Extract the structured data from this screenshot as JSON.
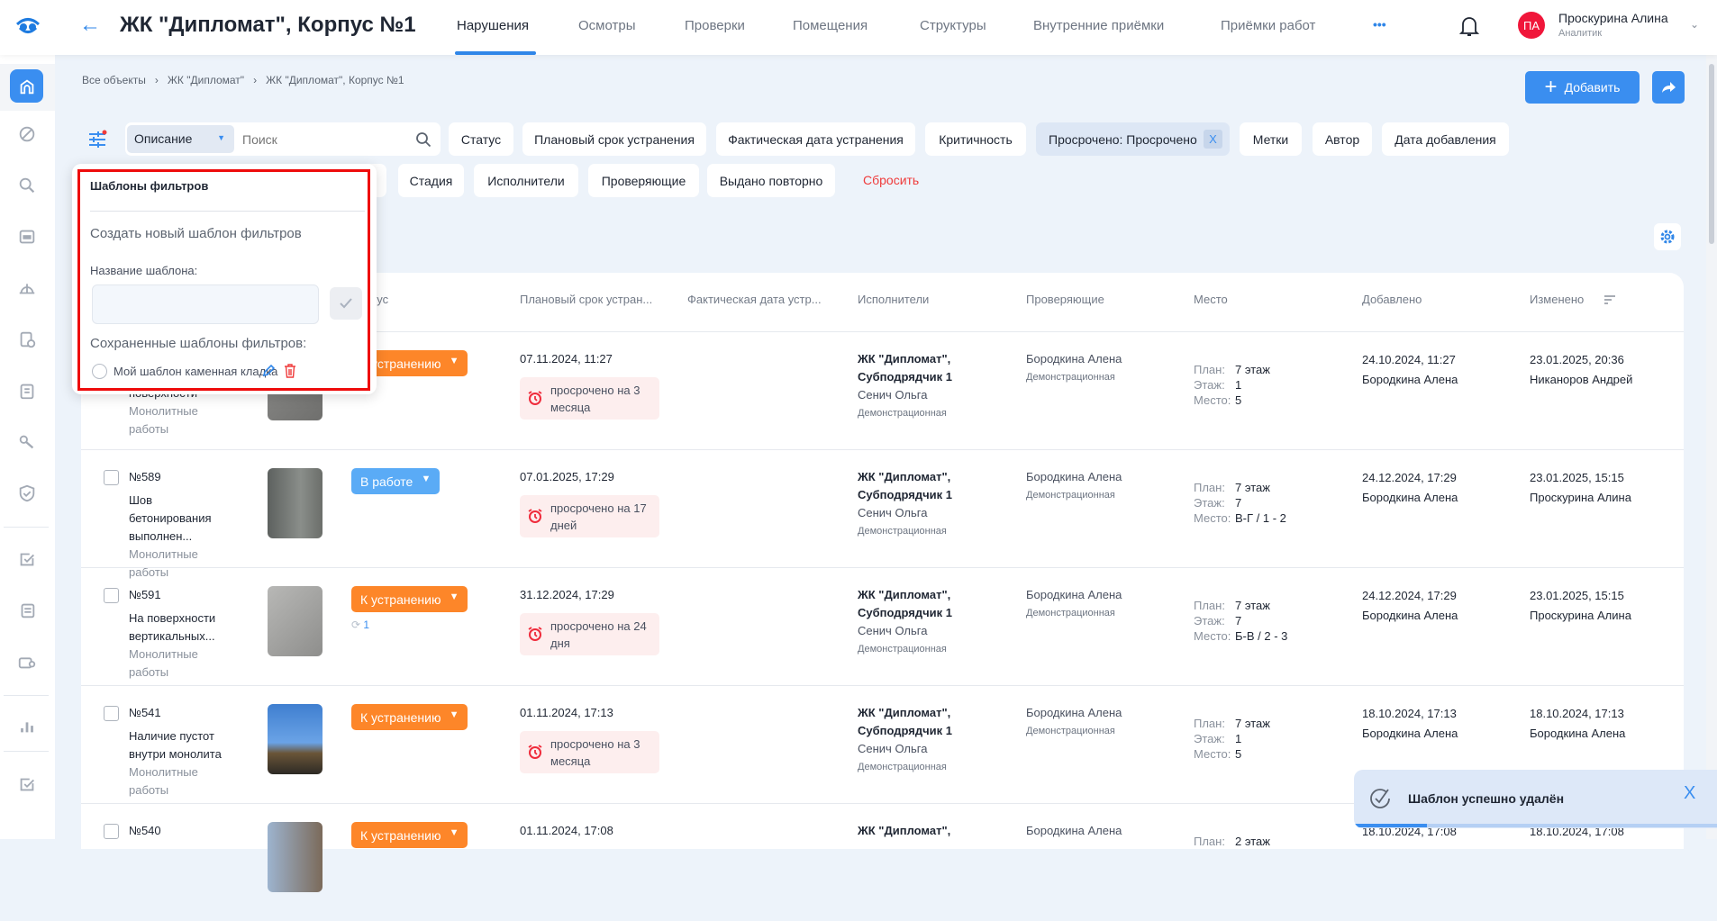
{
  "header": {
    "title": "ЖК \"Дипломат\", Корпус №1",
    "tabs": [
      "Нарушения",
      "Осмотры",
      "Проверки",
      "Помещения",
      "Структуры",
      "Внутренние приёмки",
      "Приёмки работ"
    ],
    "more": "•••",
    "user": {
      "initials": "ПА",
      "name": "Проскурина Алина",
      "role": "Аналитик",
      "avatar_color": "#f0163a"
    }
  },
  "breadcrumb": [
    "Все объекты",
    "ЖК \"Дипломат\"",
    "ЖК \"Дипломат\", Корпус №1"
  ],
  "actions": {
    "add_label": "Добавить"
  },
  "filters": {
    "search_field": "Описание",
    "search_placeholder": "Поиск",
    "row1": [
      "Статус",
      "Плановый срок устранения",
      "Фактическая дата устранения",
      "Критичность",
      "Просрочено: Просрочено",
      "Метки",
      "Автор",
      "Дата добавления"
    ],
    "active_chip_remove": "X",
    "row2": [
      "Стадия",
      "Исполнители",
      "Проверяющие",
      "Выдано повторно"
    ],
    "reset": "Сбросить"
  },
  "popover": {
    "title": "Шаблоны фильтров",
    "create_heading": "Создать новый шаблон фильтров",
    "name_label": "Название шаблона:",
    "name_value": "",
    "saved_heading": "Сохраненные шаблоны фильтров:",
    "templates": [
      {
        "name": "Мой шаблон каменная кладка",
        "selected": false
      }
    ]
  },
  "table": {
    "columns": [
      "Статус",
      "Плановый срок устран...",
      "Фактическая дата устр...",
      "Исполнители",
      "Проверяющие",
      "Место",
      "Добавлено",
      "Изменено"
    ],
    "place_labels": {
      "plan": "План:",
      "floor": "Этаж:",
      "place": "Место:"
    },
    "rows": [
      {
        "num": "",
        "title": "поверхности",
        "category": "Монолитные работы",
        "status": "К устранению",
        "status_color": "#fd8629",
        "repeat": "",
        "plan": "07.11.2024, 11:27",
        "overdue": "просрочено на 3 месяца",
        "exec_org": "ЖК \"Дипломат\", Субподрядчик 1",
        "exec_person": "Сенич Ольга",
        "exec_company": "Демонстрационная",
        "checker": "Бородкина Алена",
        "checker_company": "Демонстрационная",
        "place_plan": "7 этаж",
        "place_floor": "1",
        "place_place": "5",
        "added_date": "24.10.2024, 11:27",
        "added_by": "Бородкина Алена",
        "changed_date": "23.01.2025, 20:36",
        "changed_by": "Никаноров Андрей",
        "thumb": "concrete"
      },
      {
        "num": "№589",
        "title": "Шов бетонирования выполнен...",
        "category": "Монолитные работы",
        "status": "В работе",
        "status_color": "#5aabf6",
        "repeat": "",
        "plan": "07.01.2025, 17:29",
        "overdue": "просрочено на 17 дней",
        "exec_org": "ЖК \"Дипломат\", Субподрядчик 1",
        "exec_person": "Сенич Ольга",
        "exec_company": "Демонстрационная",
        "checker": "Бородкина Алена",
        "checker_company": "Демонстрационная",
        "place_plan": "7 этаж",
        "place_floor": "7",
        "place_place": "В-Г / 1 - 2",
        "added_date": "24.12.2024, 17:29",
        "added_by": "Бородкина Алена",
        "changed_date": "23.01.2025, 15:15",
        "changed_by": "Проскурина Алина",
        "thumb": "wall"
      },
      {
        "num": "№591",
        "title": "На поверхности вертикальных...",
        "category": "Монолитные работы",
        "status": "К устранению",
        "status_color": "#fd8629",
        "repeat": "1",
        "plan": "31.12.2024, 17:29",
        "overdue": "просрочено на 24 дня",
        "exec_org": "ЖК \"Дипломат\", Субподрядчик 1",
        "exec_person": "Сенич Ольга",
        "exec_company": "Демонстрационная",
        "checker": "Бородкина Алена",
        "checker_company": "Демонстрационная",
        "place_plan": "7 этаж",
        "place_floor": "7",
        "place_place": "Б-В / 2 - 3",
        "added_date": "24.12.2024, 17:29",
        "added_by": "Бородкина Алена",
        "changed_date": "23.01.2025, 15:15",
        "changed_by": "Проскурина Алина",
        "thumb": "crack"
      },
      {
        "num": "№541",
        "title": "Наличие пустот внутри монолита",
        "category": "Монолитные работы",
        "status": "К устранению",
        "status_color": "#fd8629",
        "repeat": "",
        "plan": "01.11.2024, 17:13",
        "overdue": "просрочено на 3 месяца",
        "exec_org": "ЖК \"Дипломат\", Субподрядчик 1",
        "exec_person": "Сенич Ольга",
        "exec_company": "Демонстрационная",
        "checker": "Бородкина Алена",
        "checker_company": "Демонстрационная",
        "place_plan": "7 этаж",
        "place_floor": "1",
        "place_place": "5",
        "added_date": "18.10.2024, 17:13",
        "added_by": "Бородкина Алена",
        "changed_date": "18.10.2024, 17:13",
        "changed_by": "Бородкина Алена",
        "thumb": "sky"
      },
      {
        "num": "№540",
        "title": "",
        "category": "",
        "status": "К устранению",
        "status_color": "#fd8629",
        "repeat": "",
        "plan": "01.11.2024, 17:08",
        "overdue": "",
        "exec_org": "ЖК \"Дипломат\",",
        "exec_person": "",
        "exec_company": "",
        "checker": "Бородкина Алена",
        "checker_company": "",
        "place_plan": "2 этаж",
        "place_floor": "",
        "place_place": "",
        "added_date": "18.10.2024, 17:08",
        "added_by": "",
        "changed_date": "18.10.2024, 17:08",
        "changed_by": "",
        "thumb": "building"
      }
    ]
  },
  "toast": {
    "message": "Шаблон успешно удалён",
    "close": "X",
    "progress": 0.2
  },
  "colors": {
    "accent": "#2f86e8",
    "danger": "#ef3b3b",
    "warning": "#fd8629"
  }
}
